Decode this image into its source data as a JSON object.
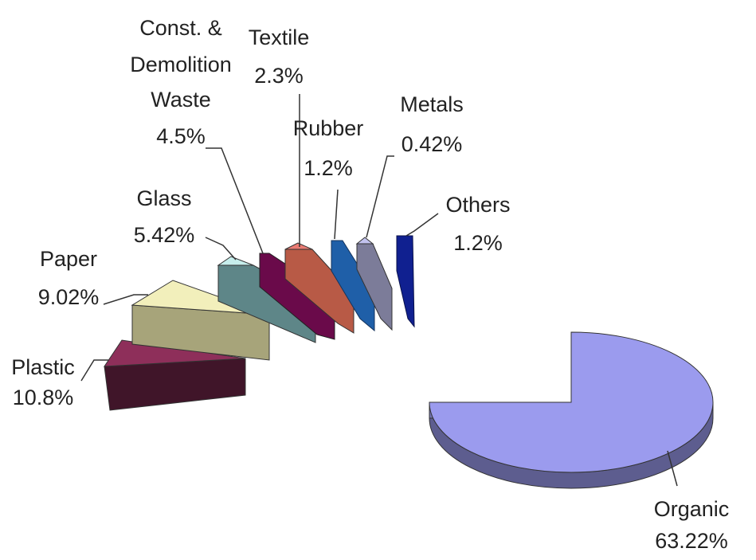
{
  "chart_data": {
    "type": "pie",
    "title": "",
    "exploded": true,
    "three_d": true,
    "legend": "none",
    "units": "%",
    "slices": [
      {
        "label": "Organic",
        "value": 63.22,
        "value_label": "63.22%",
        "color": "#9b9bee"
      },
      {
        "label": "Plastic",
        "value": 10.8,
        "value_label": "10.8%",
        "color": "#8e2f5a"
      },
      {
        "label": "Paper",
        "value": 9.02,
        "value_label": "9.02%",
        "color": "#f2efbb"
      },
      {
        "label": "Glass",
        "value": 5.42,
        "value_label": "5.42%",
        "color": "#c6eeec"
      },
      {
        "label": "Const. & Demolition Waste",
        "label_lines": [
          "Const. &",
          "Demolition",
          "Waste"
        ],
        "value": 4.5,
        "value_label": "4.5%",
        "color": "#6a0a4a"
      },
      {
        "label": "Textile",
        "value": 2.3,
        "value_label": "2.3%",
        "color": "#ea7b73"
      },
      {
        "label": "Rubber",
        "value": 1.2,
        "value_label": "1.2%",
        "color": "#1f5fa8"
      },
      {
        "label": "Metals",
        "value": 0.42,
        "value_label": "0.42%",
        "color": "#c2c2ee"
      },
      {
        "label": "Others",
        "value": 1.2,
        "value_label": "1.2%",
        "color": "#102090"
      }
    ]
  }
}
